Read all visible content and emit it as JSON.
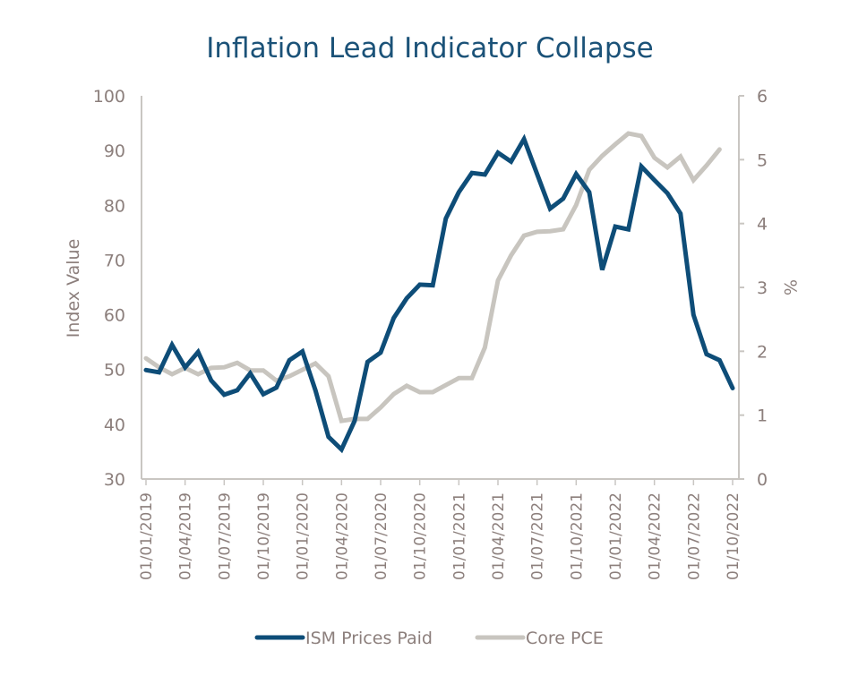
{
  "chart_data": {
    "type": "line",
    "title": "Inflation Lead Indicator Collapse",
    "xlabel": "",
    "ylabel": "Index Value",
    "y2label": "%",
    "ylim": [
      30,
      100
    ],
    "y2lim": [
      0,
      6
    ],
    "yticks": [
      "100",
      "90",
      "80",
      "70",
      "60",
      "50",
      "40",
      "30"
    ],
    "y2ticks": [
      "6",
      "5",
      "4",
      "3",
      "2",
      "1",
      "0"
    ],
    "xtick_labels": [
      "01/01/2019",
      "01/04/2019",
      "01/07/2019",
      "01/10/2019",
      "01/01/2020",
      "01/04/2020",
      "01/07/2020",
      "01/10/2020",
      "01/01/2021",
      "01/04/2021",
      "01/07/2021",
      "01/10/2021",
      "01/01/2022",
      "01/04/2022",
      "01/07/2022",
      "01/10/2022"
    ],
    "x": [
      "2019-01",
      "2019-02",
      "2019-03",
      "2019-04",
      "2019-05",
      "2019-06",
      "2019-07",
      "2019-08",
      "2019-09",
      "2019-10",
      "2019-11",
      "2019-12",
      "2020-01",
      "2020-02",
      "2020-03",
      "2020-04",
      "2020-05",
      "2020-06",
      "2020-07",
      "2020-08",
      "2020-09",
      "2020-10",
      "2020-11",
      "2020-12",
      "2021-01",
      "2021-02",
      "2021-03",
      "2021-04",
      "2021-05",
      "2021-06",
      "2021-07",
      "2021-08",
      "2021-09",
      "2021-10",
      "2021-11",
      "2021-12",
      "2022-01",
      "2022-02",
      "2022-03",
      "2022-04",
      "2022-05",
      "2022-06",
      "2022-07",
      "2022-08",
      "2022-09",
      "2022-10"
    ],
    "grid": false,
    "legend_position": "bottom",
    "series": [
      {
        "name": "ISM Prices Paid",
        "axis": "left",
        "color": "#0e4d78",
        "values": [
          49.9,
          49.5,
          54.5,
          50.4,
          53.2,
          48.0,
          45.4,
          46.2,
          49.3,
          45.5,
          46.7,
          51.7,
          53.3,
          46.2,
          37.7,
          35.4,
          40.6,
          51.4,
          53.1,
          59.4,
          63.0,
          65.5,
          65.4,
          77.6,
          82.4,
          85.9,
          85.6,
          89.6,
          88.0,
          92.1,
          85.7,
          79.4,
          81.2,
          85.7,
          82.4,
          68.2,
          76.1,
          75.6,
          87.1,
          84.6,
          82.2,
          78.5,
          60.0,
          52.8,
          51.7,
          46.6
        ]
      },
      {
        "name": "Core PCE",
        "axis": "right",
        "color": "#c8c5bf",
        "values": [
          1.89,
          1.75,
          1.64,
          1.74,
          1.64,
          1.74,
          1.75,
          1.82,
          1.7,
          1.7,
          1.54,
          1.61,
          1.71,
          1.81,
          1.61,
          0.91,
          0.94,
          0.94,
          1.12,
          1.33,
          1.46,
          1.36,
          1.36,
          1.47,
          1.58,
          1.58,
          2.06,
          3.11,
          3.5,
          3.81,
          3.87,
          3.88,
          3.91,
          4.29,
          4.84,
          5.06,
          5.24,
          5.41,
          5.37,
          5.03,
          4.88,
          5.05,
          4.68,
          4.91,
          5.16,
          null
        ]
      }
    ]
  },
  "colors": {
    "title": "#1b5278",
    "axis_text": "#8c7f7c",
    "axis_line": "#c9c6c2"
  }
}
